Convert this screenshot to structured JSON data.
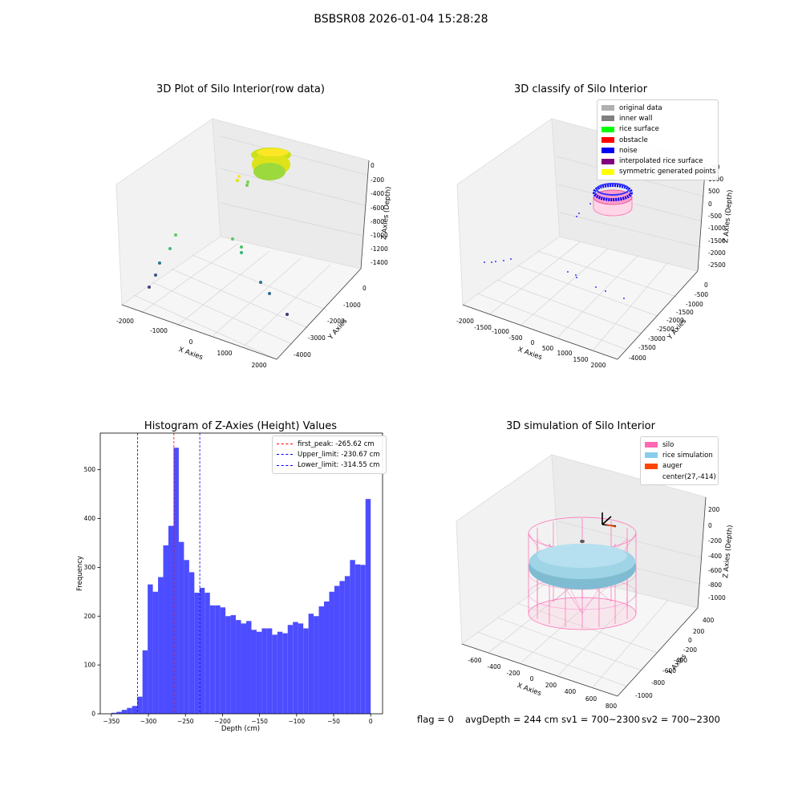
{
  "suptitle": "BSBSR08 2026-01-04 15:28:28",
  "bottom_text": {
    "flag": "flag = 0",
    "avg_depth": "avgDepth = 244 cm",
    "sv1": "sv1 = 700~2300",
    "sv2": "sv2 = 700~2300"
  },
  "panel1": {
    "title": "3D Plot of Silo Interior(row data)",
    "xlabel": "X Axies",
    "ylabel": "Y Axies",
    "zlabel": "Z Axies (Depth)",
    "xticks": [
      "-2000",
      "-1000",
      "0",
      "1000",
      "2000"
    ],
    "yticks": [
      "0",
      "-1000",
      "-2000",
      "-3000",
      "-4000"
    ],
    "zticks": [
      "0",
      "-200",
      "-400",
      "-600",
      "-800",
      "-1000",
      "-1200",
      "-1400"
    ]
  },
  "panel2": {
    "title": "3D classify of Silo Interior",
    "xlabel": "X Axies",
    "ylabel": "Y Axies",
    "zlabel": "Z Axies (Depth)",
    "xticks": [
      "-2000",
      "-1500",
      "-1000",
      "-500",
      "0",
      "500",
      "1000",
      "1500",
      "2000"
    ],
    "yticks": [
      "0",
      "-500",
      "-1000",
      "-1500",
      "-2000",
      "-2500",
      "-3000",
      "-3500",
      "-4000"
    ],
    "zticks": [
      "1000",
      "500",
      "0",
      "-500",
      "-1000",
      "-1500",
      "-2000",
      "-2500"
    ],
    "z_top_partial": "00",
    "legend": [
      {
        "label": "original data",
        "color": "#b0b0b0"
      },
      {
        "label": "inner wall",
        "color": "#808080"
      },
      {
        "label": "rice surface",
        "color": "#00ff00"
      },
      {
        "label": "obstacle",
        "color": "#ff0000"
      },
      {
        "label": "noise",
        "color": "#0000ff"
      },
      {
        "label": "interpolated rice surface",
        "color": "#800080"
      },
      {
        "label": "symmetric generated points",
        "color": "#ffff00"
      }
    ]
  },
  "panel3": {
    "title": "Histogram of Z-Axies (Height) Values",
    "xlabel": "Depth (cm)",
    "ylabel": "Frequency",
    "legend": [
      {
        "label": "first_peak: -265.62 cm",
        "color": "#ff0000"
      },
      {
        "label": "Upper_limit: -230.67 cm",
        "color": "#0000ff"
      },
      {
        "label": "Lower_limit: -314.55 cm",
        "color": "#0000ff"
      }
    ]
  },
  "panel4": {
    "title": "3D simulation of Silo Interior",
    "xlabel": "X Axies",
    "ylabel": "Y Axies",
    "zlabel": "Z Axies (Depth)",
    "xticks": [
      "-600",
      "-400",
      "-200",
      "0",
      "200",
      "400",
      "600",
      "800"
    ],
    "yticks": [
      "400",
      "200",
      "0",
      "-200",
      "-400",
      "-600",
      "-800",
      "-1000"
    ],
    "zticks": [
      "200",
      "0",
      "-200",
      "-400",
      "-600",
      "-800",
      "-1000"
    ],
    "legend": [
      {
        "label": "silo",
        "color": "#ff69b4"
      },
      {
        "label": "rice simulation",
        "color": "#87ceeb"
      },
      {
        "label": "auger",
        "color": "#ff4500"
      },
      {
        "label": "center(27,-414)",
        "color": ""
      }
    ]
  },
  "chart_data": [
    {
      "type": "scatter",
      "title": "3D Plot of Silo Interior(row data)",
      "xlabel": "X Axies",
      "ylabel": "Y Axies",
      "zlabel": "Z Axies (Depth)",
      "xlim": [
        -2200,
        2200
      ],
      "ylim": [
        -4400,
        400
      ],
      "zlim": [
        -1500,
        100
      ]
    },
    {
      "type": "scatter",
      "title": "3D classify of Silo Interior",
      "xlabel": "X Axies",
      "ylabel": "Y Axies",
      "zlabel": "Z Axies (Depth)",
      "xlim": [
        -2200,
        2200
      ],
      "ylim": [
        -4200,
        200
      ],
      "zlim": [
        -2700,
        1200
      ]
    },
    {
      "type": "bar",
      "title": "Histogram of Z-Axies (Height) Values",
      "xlabel": "Depth (cm)",
      "ylabel": "Frequency",
      "xlim": [
        -365,
        16
      ],
      "ylim": [
        0,
        575
      ],
      "xticks": [
        -350,
        -300,
        -250,
        -200,
        -150,
        -100,
        -50,
        0
      ],
      "yticks": [
        0,
        100,
        200,
        300,
        400,
        500
      ],
      "bin_width": 7,
      "bin_start": -350,
      "values": [
        2,
        4,
        8,
        12,
        16,
        35,
        130,
        265,
        250,
        280,
        345,
        385,
        545,
        352,
        315,
        290,
        248,
        258,
        248,
        222,
        222,
        218,
        200,
        202,
        192,
        185,
        190,
        172,
        168,
        175,
        175,
        162,
        168,
        165,
        182,
        188,
        185,
        175,
        205,
        200,
        220,
        230,
        250,
        262,
        272,
        282,
        315,
        306,
        305,
        440
      ],
      "lines": [
        {
          "label": "first_peak: -265.62 cm",
          "x": -265.62,
          "color": "#ff0000"
        },
        {
          "label": "Upper_limit: -230.67 cm",
          "x": -230.67,
          "color": "#0000ff"
        },
        {
          "label": "Lower_limit: -314.55 cm",
          "x": -314.55,
          "color": "#0000ff"
        }
      ],
      "bar_color": "#4d4dff"
    },
    {
      "type": "scatter",
      "title": "3D simulation of Silo Interior",
      "xlabel": "X Axies",
      "ylabel": "Y Axies",
      "zlabel": "Z Axies (Depth)",
      "xlim": [
        -700,
        850
      ],
      "ylim": [
        -1100,
        450
      ],
      "zlim": [
        -1150,
        350
      ]
    }
  ]
}
